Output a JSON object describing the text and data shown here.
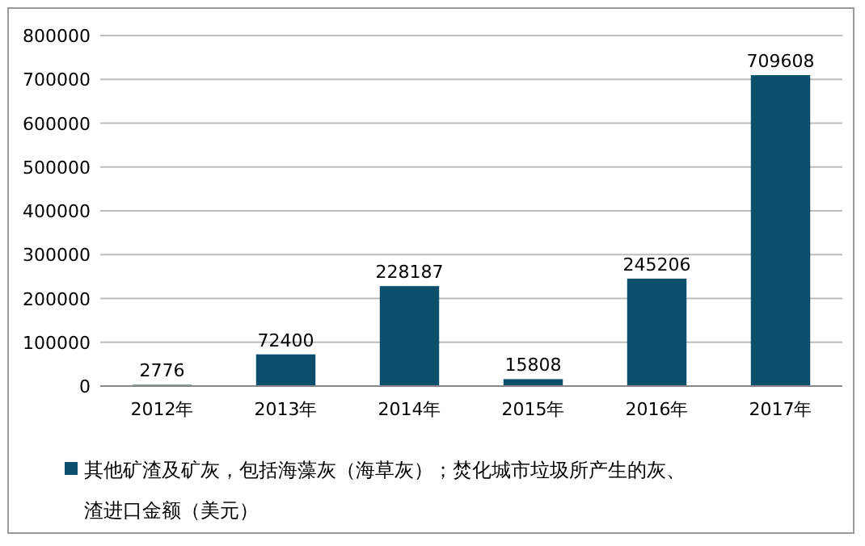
{
  "chart_data": {
    "type": "bar",
    "categories": [
      "2012年",
      "2013年",
      "2014年",
      "2015年",
      "2016年",
      "2017年"
    ],
    "series": [
      {
        "name": "其他矿渣及矿灰，包括海藻灰（海草灰）；焚化城市垃圾所产生的灰、渣进口金额（美元）",
        "color": "#0b4f6c",
        "values": [
          2776,
          72400,
          228187,
          15808,
          245206,
          709608
        ]
      }
    ],
    "ylim": [
      0,
      800000
    ],
    "yticks": [
      0,
      100000,
      200000,
      300000,
      400000,
      500000,
      600000,
      700000,
      800000
    ],
    "grid": "y",
    "legend": "bottom",
    "data_labels": true
  }
}
